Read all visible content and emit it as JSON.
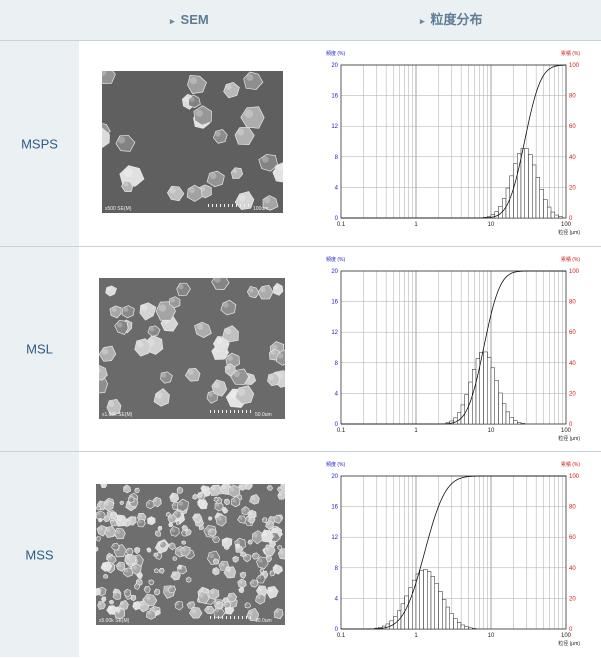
{
  "header": {
    "sem_label": "SEM",
    "psd_label": "粒度分布"
  },
  "rows": [
    {
      "name": "MSPS",
      "sem_scale": "x500 SE(M)",
      "sem_bar": "100um"
    },
    {
      "name": "MSL",
      "sem_scale": "x1.00k SE(M)",
      "sem_bar": "50.0um"
    },
    {
      "name": "MSS",
      "sem_scale": "x5.00k SE(M)",
      "sem_bar": "10.0um"
    }
  ],
  "chart_data": [
    {
      "type": "bar",
      "ylabel_left": "頻度 (%)",
      "ylabel_right": "累積 (%)",
      "xlabel": "粒径 (μm)",
      "x_scale": "log",
      "xlim": [
        0.1,
        100
      ],
      "ylim_left": [
        0,
        20
      ],
      "ylim_right": [
        0,
        100
      ],
      "x_ticks": [
        "0.1",
        "1",
        "10",
        "100"
      ],
      "y_ticks_left": [
        "0",
        "4",
        "8",
        "12",
        "16",
        "20"
      ],
      "y_ticks_right": [
        "0",
        "20",
        "40",
        "60",
        "80",
        "100"
      ],
      "grid": true,
      "distribution": {
        "median_um": 28,
        "sigma_log10": 0.17,
        "peak_percent": 9.2
      },
      "series": [
        {
          "name": "頻度 (%)"
        },
        {
          "name": "累積 (%)"
        }
      ]
    },
    {
      "type": "bar",
      "ylabel_left": "頻度 (%)",
      "ylabel_right": "累積 (%)",
      "xlabel": "粒径 (μm)",
      "x_scale": "log",
      "xlim": [
        0.1,
        100
      ],
      "ylim_left": [
        0,
        20
      ],
      "ylim_right": [
        0,
        100
      ],
      "x_ticks": [
        "0.1",
        "1",
        "10",
        "100"
      ],
      "y_ticks_left": [
        "0",
        "4",
        "8",
        "12",
        "16",
        "20"
      ],
      "y_ticks_right": [
        "0",
        "20",
        "40",
        "60",
        "80",
        "100"
      ],
      "grid": true,
      "distribution": {
        "median_um": 8,
        "sigma_log10": 0.17,
        "peak_percent": 9.5
      },
      "series": [
        {
          "name": "頻度 (%)"
        },
        {
          "name": "累積 (%)"
        }
      ]
    },
    {
      "type": "bar",
      "ylabel_left": "頻度 (%)",
      "ylabel_right": "累積 (%)",
      "xlabel": "粒径 (μm)",
      "x_scale": "log",
      "xlim": [
        0.1,
        100
      ],
      "ylim_left": [
        0,
        20
      ],
      "ylim_right": [
        0,
        100
      ],
      "x_ticks": [
        "0.1",
        "1",
        "10",
        "100"
      ],
      "y_ticks_left": [
        "0",
        "4",
        "8",
        "12",
        "16",
        "20"
      ],
      "y_ticks_right": [
        "0",
        "20",
        "40",
        "60",
        "80",
        "100"
      ],
      "grid": true,
      "distribution": {
        "median_um": 1.3,
        "sigma_log10": 0.22,
        "peak_percent": 7.8
      },
      "series": [
        {
          "name": "頻度 (%)"
        },
        {
          "name": "累積 (%)"
        }
      ]
    }
  ]
}
